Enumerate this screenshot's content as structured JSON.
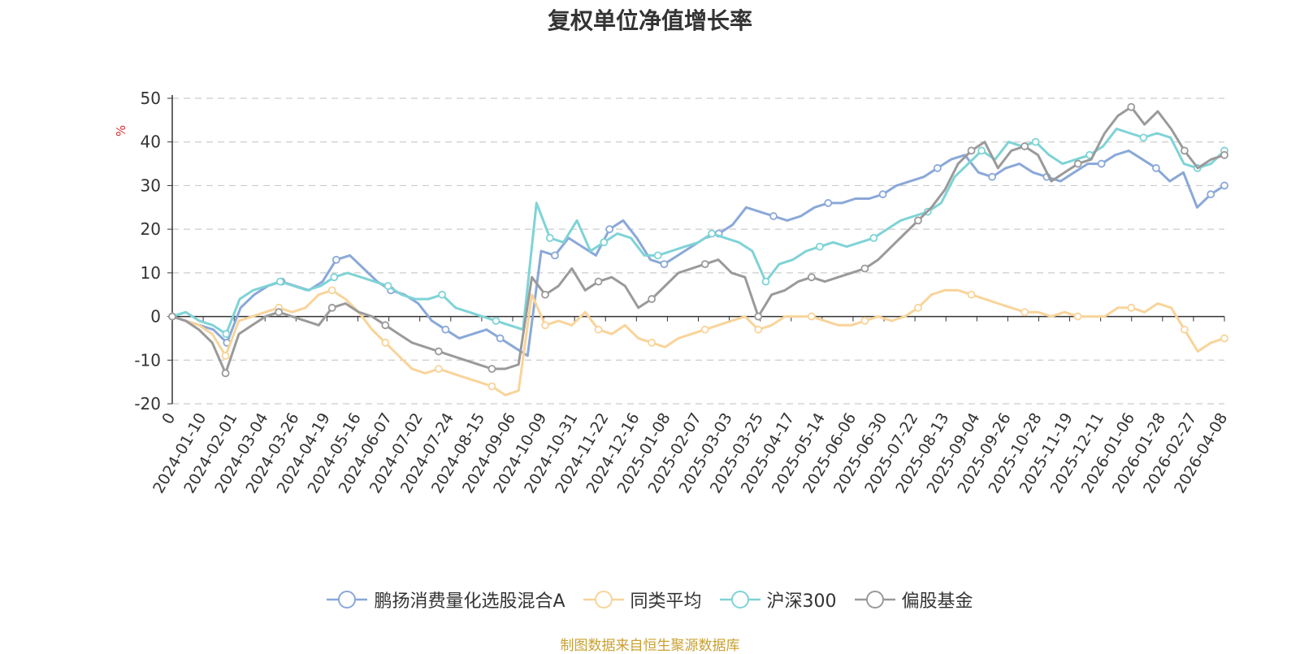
{
  "chart_data": {
    "type": "line",
    "title": "复权单位净值增长率",
    "ylabel": "%",
    "ylim": [
      -20,
      50
    ],
    "y_ticks": [
      50,
      40,
      30,
      20,
      10,
      0,
      -10,
      -20
    ],
    "x_tick_labels": [
      "0",
      "2024-01-10",
      "2024-02-01",
      "2024-03-04",
      "2024-03-26",
      "2024-04-19",
      "2024-05-16",
      "2024-06-07",
      "2024-07-02",
      "2024-07-24",
      "2024-08-15",
      "2024-09-06",
      "2024-10-09",
      "2024-10-31",
      "2024-11-22",
      "2024-12-16",
      "2025-01-08",
      "2025-02-07",
      "2025-03-03",
      "2025-03-25",
      "2025-04-17",
      "2025-05-14",
      "2025-06-06",
      "2025-06-30",
      "2025-07-22",
      "2025-08-13",
      "2025-09-04",
      "2025-09-26",
      "2025-10-28",
      "2025-11-19",
      "2025-12-11",
      "2026-01-06",
      "2026-01-28",
      "2026-02-27",
      "2026-04-08"
    ],
    "grid": true,
    "legend_position": "bottom",
    "series": [
      {
        "name": "鹏扬消费量化选股混合A",
        "color": "#8aa8d8",
        "values": [
          0,
          -1,
          -2,
          -3,
          -6,
          2,
          5,
          7,
          8,
          7,
          6,
          8,
          13,
          14,
          11,
          8,
          6,
          5,
          3,
          -1,
          -3,
          -5,
          -4,
          -3,
          -5,
          -7,
          -9,
          15,
          14,
          18,
          16,
          14,
          20,
          22,
          18,
          13,
          12,
          14,
          16,
          18,
          19,
          21,
          25,
          24,
          23,
          22,
          23,
          25,
          26,
          26,
          27,
          27,
          28,
          30,
          31,
          32,
          34,
          36,
          37,
          33,
          32,
          34,
          35,
          33,
          32,
          31,
          33,
          35,
          35,
          37,
          38,
          36,
          34,
          31,
          33,
          25,
          28,
          30
        ]
      },
      {
        "name": "同类平均",
        "color": "#f8d49a",
        "values": [
          0,
          -1,
          -2,
          -4,
          -9,
          -1,
          0,
          1,
          2,
          1,
          2,
          5,
          6,
          4,
          1,
          -3,
          -6,
          -9,
          -12,
          -13,
          -12,
          -13,
          -14,
          -15,
          -16,
          -18,
          -17,
          5,
          -2,
          -1,
          -2,
          1,
          -3,
          -4,
          -2,
          -5,
          -6,
          -7,
          -5,
          -4,
          -3,
          -2,
          -1,
          0,
          -3,
          -2,
          0,
          0,
          0,
          -1,
          -2,
          -2,
          -1,
          0,
          -1,
          0,
          2,
          5,
          6,
          6,
          5,
          4,
          3,
          2,
          1,
          1,
          0,
          1,
          0,
          0,
          0,
          2,
          2,
          1,
          3,
          2,
          -3,
          -8,
          -6,
          -5
        ]
      },
      {
        "name": "沪深300",
        "color": "#7fd3d6",
        "values": [
          0,
          1,
          -1,
          -2,
          -4,
          4,
          6,
          7,
          8,
          7,
          6,
          7,
          9,
          10,
          9,
          8,
          7,
          5,
          4,
          4,
          5,
          2,
          1,
          0,
          -1,
          -2,
          -3,
          26,
          18,
          17,
          22,
          15,
          17,
          19,
          18,
          14,
          14,
          15,
          16,
          17,
          19,
          18,
          17,
          15,
          8,
          12,
          13,
          15,
          16,
          17,
          16,
          17,
          18,
          20,
          22,
          23,
          24,
          26,
          32,
          35,
          38,
          36,
          40,
          39,
          40,
          37,
          35,
          36,
          37,
          39,
          43,
          42,
          41,
          42,
          41,
          35,
          34,
          35,
          38
        ]
      },
      {
        "name": "偏股基金",
        "color": "#9a9a9a",
        "values": [
          0,
          -1,
          -3,
          -6,
          -13,
          -4,
          -2,
          0,
          1,
          0,
          -1,
          -2,
          2,
          3,
          1,
          0,
          -2,
          -4,
          -6,
          -7,
          -8,
          -9,
          -10,
          -11,
          -12,
          -12,
          -11,
          9,
          5,
          7,
          11,
          6,
          8,
          9,
          7,
          2,
          4,
          7,
          10,
          11,
          12,
          13,
          10,
          9,
          0,
          5,
          6,
          8,
          9,
          8,
          9,
          10,
          11,
          13,
          16,
          19,
          22,
          25,
          29,
          35,
          38,
          40,
          34,
          38,
          39,
          37,
          31,
          33,
          35,
          36,
          42,
          46,
          48,
          44,
          47,
          43,
          38,
          34,
          36,
          37
        ]
      }
    ]
  },
  "source_note": "制图数据来自恒生聚源数据库"
}
